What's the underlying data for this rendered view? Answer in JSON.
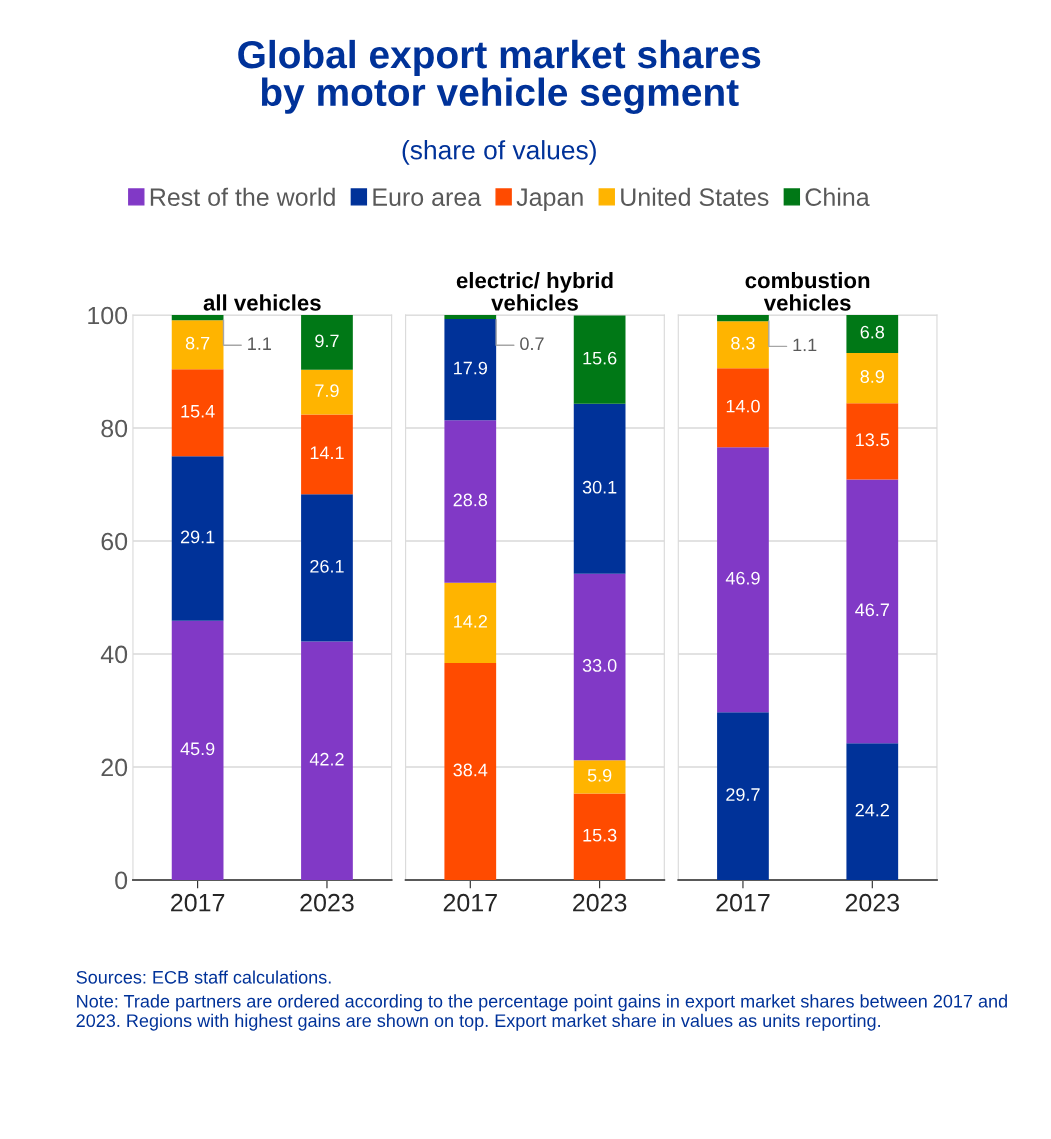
{
  "chart_data": [
    {
      "type": "other",
      "title": "Global export market shares\nby motor vehicle segment",
      "subtitle": "(share of values)",
      "annotations": [
        "Sources: ECB staff calculations.",
        "Note: Trade partners are ordered according to the percentage point gains in export market shares between 2017 and 2023. Regions with highest gains are shown on top. Export market share in values as units reporting."
      ]
    },
    {
      "type": "bar",
      "title": "all vehicles",
      "categories": [
        "2017",
        "2023"
      ],
      "stacked": true,
      "ylim": [
        0,
        100
      ],
      "yticks": [
        0,
        20,
        40,
        60,
        80,
        100
      ],
      "grid": "y",
      "legend": "top",
      "series": [
        {
          "name": "Rest of the world",
          "color": "#8139c6",
          "values": [
            45.9,
            42.2
          ],
          "value_labels": [
            "45.9",
            "42.2"
          ]
        },
        {
          "name": "Euro area",
          "color": "#003299",
          "values": [
            29.1,
            26.1
          ],
          "value_labels": [
            "29.1",
            "26.1"
          ]
        },
        {
          "name": "Japan",
          "color": "#ff4b00",
          "values": [
            15.4,
            14.1
          ],
          "value_labels": [
            "15.4",
            "14.1"
          ]
        },
        {
          "name": "United States",
          "color": "#ffb400",
          "values": [
            8.7,
            7.9
          ],
          "value_labels": [
            "8.7",
            "7.9"
          ]
        },
        {
          "name": "China",
          "color": "#007816",
          "values": [
            1.1,
            9.7
          ],
          "value_labels": [
            "1.1",
            "9.7"
          ]
        }
      ]
    },
    {
      "type": "bar",
      "title": "electric/ hybrid\nvehicles",
      "categories": [
        "2017",
        "2023"
      ],
      "stacked": true,
      "ylim": [
        0,
        100
      ],
      "yticks": [
        0,
        20,
        40,
        60,
        80,
        100
      ],
      "grid": "y",
      "tick_labels": "x",
      "series": [
        {
          "name": "Japan",
          "color": "#ff4b00",
          "values": [
            38.4,
            15.3
          ],
          "value_labels": [
            "38.4",
            "15.3"
          ]
        },
        {
          "name": "United States",
          "color": "#ffb400",
          "values": [
            14.2,
            5.9
          ],
          "value_labels": [
            "14.2",
            "5.9"
          ]
        },
        {
          "name": "Rest of the world",
          "color": "#8139c6",
          "values": [
            28.8,
            33.0
          ],
          "value_labels": [
            "28.8",
            "33.0"
          ]
        },
        {
          "name": "Euro area",
          "color": "#003299",
          "values": [
            17.9,
            30.1
          ],
          "value_labels": [
            "17.9",
            "30.1"
          ]
        },
        {
          "name": "China",
          "color": "#007816",
          "values": [
            0.7,
            15.6
          ],
          "value_labels": [
            "0.7",
            "15.6"
          ]
        }
      ]
    },
    {
      "type": "bar",
      "title": "combustion\nvehicles",
      "categories": [
        "2017",
        "2023"
      ],
      "stacked": true,
      "ylim": [
        0,
        100
      ],
      "yticks": [
        0,
        20,
        40,
        60,
        80,
        100
      ],
      "grid": "y",
      "tick_labels": "x",
      "series": [
        {
          "name": "Euro area",
          "color": "#003299",
          "values": [
            29.7,
            24.2
          ],
          "value_labels": [
            "29.7",
            "24.2"
          ]
        },
        {
          "name": "Rest of the world",
          "color": "#8139c6",
          "values": [
            46.9,
            46.7
          ],
          "value_labels": [
            "46.9",
            "46.7"
          ]
        },
        {
          "name": "Japan",
          "color": "#ff4b00",
          "values": [
            14.0,
            13.5
          ],
          "value_labels": [
            "14.0",
            "13.5"
          ]
        },
        {
          "name": "United States",
          "color": "#ffb400",
          "values": [
            8.3,
            8.9
          ],
          "value_labels": [
            "8.3",
            "8.9"
          ]
        },
        {
          "name": "China",
          "color": "#007816",
          "values": [
            1.1,
            6.8
          ],
          "value_labels": [
            "1.1",
            "6.8"
          ]
        }
      ]
    }
  ]
}
